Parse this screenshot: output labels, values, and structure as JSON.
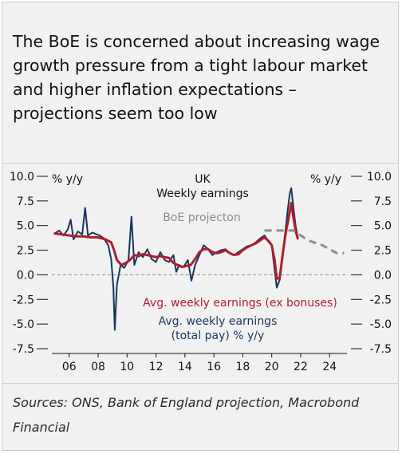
{
  "title": "The BoE is concerned about increasing wage growth pressure from a tight labour market and higher inflation expectations – projections seem too low",
  "source": "Sources: ONS, Bank of England projection, Macrobond Financial",
  "chart_data": {
    "type": "line",
    "title_line1": "UK",
    "title_line2": "Weekly earnings",
    "left_axis_label": "% y/y",
    "right_axis_label": "% y/y",
    "ylim": [
      -7.5,
      10.0
    ],
    "y_ticks": [
      "10.0",
      "7.5",
      "5.0",
      "2.5",
      "0.0",
      "-2.5",
      "-5.0",
      "-7.5"
    ],
    "y_tick_values": [
      10.0,
      7.5,
      5.0,
      2.5,
      0.0,
      -2.5,
      -5.0,
      -7.5
    ],
    "x_ticks": [
      "06",
      "08",
      "10",
      "12",
      "14",
      "16",
      "18",
      "20",
      "22",
      "24"
    ],
    "x_tick_values": [
      2006,
      2008,
      2010,
      2012,
      2014,
      2016,
      2018,
      2020,
      2022,
      2024
    ],
    "xlim": [
      2004.8,
      2025.2
    ],
    "series": [
      {
        "name": "Avg. weekly earnings (total pay) % y/y",
        "label": "Avg. weekly earnings (total pay) % y/y",
        "color": "#17365d",
        "points": [
          [
            2005.0,
            4.2
          ],
          [
            2005.3,
            4.5
          ],
          [
            2005.6,
            4.0
          ],
          [
            2005.9,
            4.6
          ],
          [
            2006.1,
            5.6
          ],
          [
            2006.3,
            3.6
          ],
          [
            2006.6,
            4.4
          ],
          [
            2006.9,
            4.1
          ],
          [
            2007.1,
            6.8
          ],
          [
            2007.3,
            4.0
          ],
          [
            2007.6,
            4.3
          ],
          [
            2007.9,
            4.1
          ],
          [
            2008.1,
            4.0
          ],
          [
            2008.4,
            3.7
          ],
          [
            2008.7,
            3.0
          ],
          [
            2008.9,
            1.6
          ],
          [
            2009.05,
            -1.2
          ],
          [
            2009.15,
            -5.6
          ],
          [
            2009.3,
            -1.0
          ],
          [
            2009.55,
            1.0
          ],
          [
            2009.8,
            0.7
          ],
          [
            2010.1,
            1.5
          ],
          [
            2010.3,
            5.9
          ],
          [
            2010.5,
            1.0
          ],
          [
            2010.8,
            2.3
          ],
          [
            2011.1,
            1.8
          ],
          [
            2011.4,
            2.6
          ],
          [
            2011.7,
            1.6
          ],
          [
            2012.0,
            1.3
          ],
          [
            2012.3,
            2.3
          ],
          [
            2012.6,
            1.5
          ],
          [
            2012.9,
            1.3
          ],
          [
            2013.2,
            2.0
          ],
          [
            2013.4,
            0.3
          ],
          [
            2013.6,
            1.0
          ],
          [
            2013.9,
            0.8
          ],
          [
            2014.2,
            1.5
          ],
          [
            2014.45,
            -0.6
          ],
          [
            2014.7,
            1.0
          ],
          [
            2015.0,
            2.0
          ],
          [
            2015.3,
            3.0
          ],
          [
            2015.6,
            2.6
          ],
          [
            2015.9,
            2.0
          ],
          [
            2016.2,
            2.3
          ],
          [
            2016.5,
            2.5
          ],
          [
            2016.8,
            2.6
          ],
          [
            2017.1,
            2.2
          ],
          [
            2017.4,
            2.0
          ],
          [
            2017.7,
            2.3
          ],
          [
            2018.0,
            2.6
          ],
          [
            2018.3,
            2.9
          ],
          [
            2018.6,
            3.0
          ],
          [
            2018.9,
            3.3
          ],
          [
            2019.2,
            3.7
          ],
          [
            2019.5,
            4.0
          ],
          [
            2019.8,
            3.3
          ],
          [
            2020.0,
            3.0
          ],
          [
            2020.2,
            0.5
          ],
          [
            2020.35,
            -1.3
          ],
          [
            2020.55,
            -0.5
          ],
          [
            2020.75,
            2.0
          ],
          [
            2020.95,
            4.5
          ],
          [
            2021.1,
            6.5
          ],
          [
            2021.25,
            8.3
          ],
          [
            2021.35,
            8.8
          ],
          [
            2021.5,
            6.8
          ],
          [
            2021.65,
            5.0
          ],
          [
            2021.8,
            3.8
          ]
        ]
      },
      {
        "name": "Avg. weekly earnings (ex bonuses)",
        "label": "Avg. weekly earnings (ex bonuses)",
        "color": "#b01c2e",
        "points": [
          [
            2005.0,
            4.2
          ],
          [
            2005.5,
            4.1
          ],
          [
            2006.0,
            4.0
          ],
          [
            2006.5,
            3.9
          ],
          [
            2007.0,
            3.9
          ],
          [
            2007.5,
            3.8
          ],
          [
            2008.0,
            3.8
          ],
          [
            2008.5,
            3.6
          ],
          [
            2008.9,
            3.3
          ],
          [
            2009.1,
            2.5
          ],
          [
            2009.3,
            1.5
          ],
          [
            2009.6,
            1.0
          ],
          [
            2009.9,
            1.2
          ],
          [
            2010.2,
            1.5
          ],
          [
            2010.5,
            2.0
          ],
          [
            2010.8,
            1.9
          ],
          [
            2011.1,
            2.1
          ],
          [
            2011.4,
            2.0
          ],
          [
            2011.7,
            1.9
          ],
          [
            2012.0,
            1.8
          ],
          [
            2012.3,
            1.9
          ],
          [
            2012.6,
            1.8
          ],
          [
            2012.9,
            1.7
          ],
          [
            2013.2,
            1.2
          ],
          [
            2013.5,
            1.0
          ],
          [
            2013.8,
            0.8
          ],
          [
            2014.1,
            0.9
          ],
          [
            2014.4,
            1.0
          ],
          [
            2014.7,
            1.6
          ],
          [
            2015.0,
            2.3
          ],
          [
            2015.3,
            2.6
          ],
          [
            2015.6,
            2.6
          ],
          [
            2015.9,
            2.3
          ],
          [
            2016.2,
            2.2
          ],
          [
            2016.5,
            2.3
          ],
          [
            2016.8,
            2.5
          ],
          [
            2017.1,
            2.2
          ],
          [
            2017.4,
            2.0
          ],
          [
            2017.7,
            2.1
          ],
          [
            2018.0,
            2.5
          ],
          [
            2018.3,
            2.8
          ],
          [
            2018.6,
            3.0
          ],
          [
            2018.9,
            3.2
          ],
          [
            2019.2,
            3.5
          ],
          [
            2019.5,
            3.8
          ],
          [
            2019.8,
            3.4
          ],
          [
            2020.0,
            3.0
          ],
          [
            2020.2,
            1.5
          ],
          [
            2020.35,
            -0.4
          ],
          [
            2020.55,
            -0.3
          ],
          [
            2020.75,
            2.0
          ],
          [
            2020.95,
            4.1
          ],
          [
            2021.15,
            5.6
          ],
          [
            2021.35,
            7.3
          ],
          [
            2021.5,
            5.8
          ],
          [
            2021.65,
            4.5
          ],
          [
            2021.8,
            3.7
          ]
        ]
      },
      {
        "name": "BoE projecton",
        "label": "BoE projecton",
        "color": "#8c8c8c",
        "dashed": true,
        "points": [
          [
            2019.5,
            4.5
          ],
          [
            2020.5,
            4.5
          ],
          [
            2021.5,
            4.5
          ],
          [
            2022.5,
            3.5
          ],
          [
            2023.5,
            3.0
          ],
          [
            2024.5,
            2.2
          ],
          [
            2025.0,
            2.2
          ]
        ]
      }
    ]
  }
}
